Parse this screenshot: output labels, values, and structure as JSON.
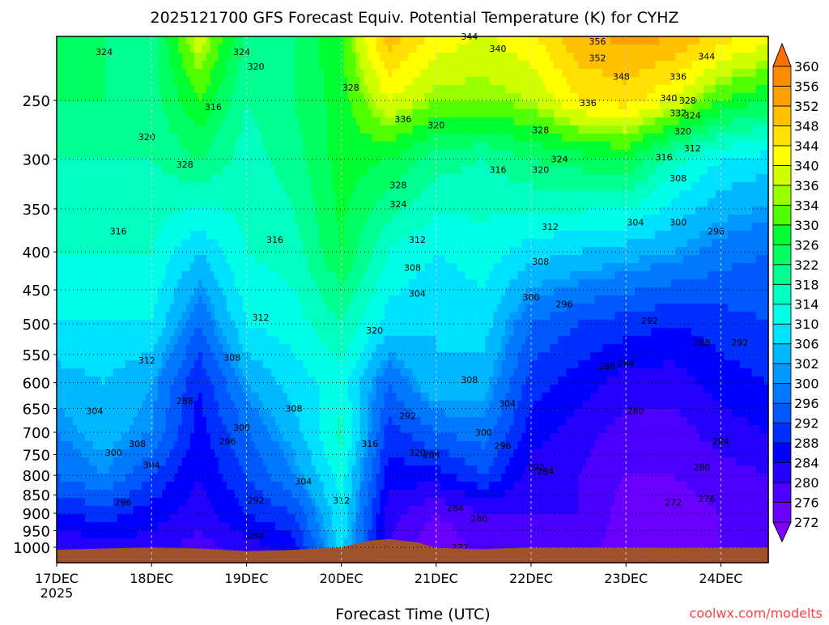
{
  "chart_data": {
    "type": "heatmap",
    "title": "2025121700 GFS Forecast Equiv. Potential Temperature (K) for CYHZ",
    "xlabel": "Forecast Time (UTC)",
    "ylabel": "",
    "credit": "coolwx.com/modelts",
    "x_ticks": [
      {
        "day": 0,
        "label": "17DEC",
        "sub": "2025"
      },
      {
        "day": 1,
        "label": "18DEC"
      },
      {
        "day": 2,
        "label": "19DEC"
      },
      {
        "day": 3,
        "label": "20DEC"
      },
      {
        "day": 4,
        "label": "21DEC"
      },
      {
        "day": 5,
        "label": "22DEC"
      },
      {
        "day": 6,
        "label": "23DEC"
      },
      {
        "day": 7,
        "label": "24DEC"
      }
    ],
    "xlim": [
      0,
      7.5
    ],
    "ylim_hpa": [
      1049,
      205
    ],
    "y_ticks": [
      250,
      300,
      350,
      400,
      450,
      500,
      550,
      600,
      650,
      700,
      750,
      800,
      850,
      900,
      950,
      1000
    ],
    "times_days": [
      0,
      0.5,
      1,
      1.5,
      2,
      2.5,
      3,
      3.5,
      4,
      4.5,
      5,
      5.5,
      6,
      6.5,
      7,
      7.5
    ],
    "levels_hpa": [
      200,
      250,
      300,
      400,
      500,
      600,
      700,
      800,
      900,
      1000
    ],
    "theta_e": [
      [
        324,
        322,
        320,
        340,
        322,
        322,
        330,
        352,
        344,
        340,
        344,
        352,
        354,
        354,
        348,
        344
      ],
      [
        322,
        322,
        320,
        330,
        318,
        322,
        328,
        340,
        334,
        334,
        336,
        344,
        346,
        340,
        330,
        326
      ],
      [
        318,
        318,
        318,
        322,
        316,
        320,
        328,
        326,
        320,
        318,
        322,
        324,
        326,
        316,
        310,
        308
      ],
      [
        314,
        314,
        314,
        306,
        314,
        316,
        326,
        314,
        310,
        312,
        308,
        306,
        304,
        302,
        298,
        296
      ],
      [
        310,
        310,
        310,
        296,
        310,
        312,
        318,
        308,
        306,
        308,
        296,
        292,
        290,
        288,
        290,
        292
      ],
      [
        304,
        306,
        302,
        288,
        302,
        308,
        312,
        296,
        306,
        304,
        290,
        286,
        282,
        282,
        286,
        288
      ],
      [
        300,
        304,
        300,
        286,
        296,
        304,
        316,
        290,
        296,
        298,
        286,
        282,
        278,
        278,
        282,
        284
      ],
      [
        296,
        300,
        292,
        284,
        292,
        300,
        312,
        286,
        286,
        292,
        282,
        280,
        276,
        276,
        278,
        280
      ],
      [
        288,
        290,
        286,
        282,
        288,
        292,
        310,
        282,
        276,
        280,
        280,
        280,
        274,
        274,
        276,
        278
      ],
      [
        280,
        282,
        282,
        278,
        282,
        286,
        308,
        280,
        272,
        278,
        278,
        278,
        274,
        274,
        276,
        276
      ]
    ],
    "surface_pressure": {
      "days": [
        0,
        0.5,
        1,
        1.5,
        2,
        2.5,
        3,
        3.3,
        3.5,
        3.8,
        4,
        4.5,
        5,
        5.5,
        6,
        6.5,
        7,
        7.5
      ],
      "hpa": [
        1008,
        1004,
        1000,
        1004,
        1012,
        1008,
        1000,
        980,
        975,
        985,
        1002,
        1006,
        1000,
        1000,
        1000,
        1001,
        1000,
        1000
      ]
    },
    "colorbar": {
      "levels": [
        272,
        276,
        280,
        284,
        288,
        292,
        296,
        300,
        302,
        306,
        310,
        314,
        318,
        322,
        326,
        330,
        334,
        336,
        340,
        344,
        348,
        352,
        356,
        360
      ],
      "colors": [
        "#8000ff",
        "#6a00ff",
        "#4a00ff",
        "#2400ff",
        "#0000ff",
        "#0030ff",
        "#0058ff",
        "#0078ff",
        "#0098ff",
        "#00b8ff",
        "#00e0ff",
        "#00ffe8",
        "#00ffc0",
        "#00ff90",
        "#00ff60",
        "#00ff30",
        "#50ff00",
        "#98ff00",
        "#d0ff00",
        "#ffff00",
        "#ffe000",
        "#ffc000",
        "#ffa000",
        "#ff8c00",
        "#ff7000"
      ]
    },
    "contour_labels": [
      {
        "day": 0.5,
        "hpa": 215,
        "text": "324"
      },
      {
        "day": 1.95,
        "hpa": 215,
        "text": "324"
      },
      {
        "day": 2.1,
        "hpa": 225,
        "text": "320"
      },
      {
        "day": 0.95,
        "hpa": 280,
        "text": "320"
      },
      {
        "day": 1.35,
        "hpa": 305,
        "text": "328"
      },
      {
        "day": 1.65,
        "hpa": 255,
        "text": "316"
      },
      {
        "day": 3.1,
        "hpa": 240,
        "text": "328"
      },
      {
        "day": 4.35,
        "hpa": 205,
        "text": "344"
      },
      {
        "day": 4.65,
        "hpa": 213,
        "text": "340"
      },
      {
        "day": 5.7,
        "hpa": 208,
        "text": "356"
      },
      {
        "day": 5.7,
        "hpa": 219,
        "text": "352"
      },
      {
        "day": 5.95,
        "hpa": 232,
        "text": "348"
      },
      {
        "day": 5.6,
        "hpa": 252,
        "text": "336"
      },
      {
        "day": 5.1,
        "hpa": 274,
        "text": "328"
      },
      {
        "day": 6.45,
        "hpa": 248,
        "text": "340"
      },
      {
        "day": 6.55,
        "hpa": 260,
        "text": "332"
      },
      {
        "day": 6.6,
        "hpa": 275,
        "text": "320"
      },
      {
        "day": 6.85,
        "hpa": 218,
        "text": "344"
      },
      {
        "day": 6.55,
        "hpa": 232,
        "text": "336"
      },
      {
        "day": 6.65,
        "hpa": 250,
        "text": "328"
      },
      {
        "day": 6.7,
        "hpa": 262,
        "text": "324"
      },
      {
        "day": 6.4,
        "hpa": 298,
        "text": "316"
      },
      {
        "day": 6.7,
        "hpa": 290,
        "text": "312"
      },
      {
        "day": 6.55,
        "hpa": 318,
        "text": "308"
      },
      {
        "day": 4.0,
        "hpa": 270,
        "text": "320"
      },
      {
        "day": 3.65,
        "hpa": 265,
        "text": "336"
      },
      {
        "day": 3.6,
        "hpa": 325,
        "text": "328"
      },
      {
        "day": 3.6,
        "hpa": 345,
        "text": "324"
      },
      {
        "day": 4.65,
        "hpa": 310,
        "text": "316"
      },
      {
        "day": 5.1,
        "hpa": 310,
        "text": "320"
      },
      {
        "day": 5.3,
        "hpa": 300,
        "text": "324"
      },
      {
        "day": 5.2,
        "hpa": 370,
        "text": "312"
      },
      {
        "day": 3.8,
        "hpa": 385,
        "text": "312"
      },
      {
        "day": 3.75,
        "hpa": 420,
        "text": "308"
      },
      {
        "day": 3.8,
        "hpa": 455,
        "text": "304"
      },
      {
        "day": 5.1,
        "hpa": 412,
        "text": "308"
      },
      {
        "day": 5.0,
        "hpa": 460,
        "text": "300"
      },
      {
        "day": 5.35,
        "hpa": 470,
        "text": "296"
      },
      {
        "day": 6.25,
        "hpa": 495,
        "text": "292"
      },
      {
        "day": 6.1,
        "hpa": 365,
        "text": "304"
      },
      {
        "day": 6.55,
        "hpa": 365,
        "text": "300"
      },
      {
        "day": 6.95,
        "hpa": 375,
        "text": "296"
      },
      {
        "day": 0.65,
        "hpa": 375,
        "text": "316"
      },
      {
        "day": 2.3,
        "hpa": 385,
        "text": "316"
      },
      {
        "day": 2.15,
        "hpa": 490,
        "text": "312"
      },
      {
        "day": 3.35,
        "hpa": 510,
        "text": "320"
      },
      {
        "day": 0.95,
        "hpa": 560,
        "text": "312"
      },
      {
        "day": 1.85,
        "hpa": 555,
        "text": "308"
      },
      {
        "day": 4.35,
        "hpa": 595,
        "text": "308"
      },
      {
        "day": 4.75,
        "hpa": 640,
        "text": "304"
      },
      {
        "day": 1.35,
        "hpa": 635,
        "text": "288"
      },
      {
        "day": 0.4,
        "hpa": 655,
        "text": "304"
      },
      {
        "day": 2.5,
        "hpa": 650,
        "text": "308"
      },
      {
        "day": 1.95,
        "hpa": 690,
        "text": "300"
      },
      {
        "day": 1.8,
        "hpa": 720,
        "text": "296"
      },
      {
        "day": 0.85,
        "hpa": 725,
        "text": "308"
      },
      {
        "day": 0.6,
        "hpa": 745,
        "text": "300"
      },
      {
        "day": 1.0,
        "hpa": 775,
        "text": "304"
      },
      {
        "day": 3.7,
        "hpa": 665,
        "text": "292"
      },
      {
        "day": 4.5,
        "hpa": 700,
        "text": "300"
      },
      {
        "day": 4.7,
        "hpa": 730,
        "text": "296"
      },
      {
        "day": 5.05,
        "hpa": 780,
        "text": "292"
      },
      {
        "day": 5.15,
        "hpa": 790,
        "text": "284"
      },
      {
        "day": 3.95,
        "hpa": 750,
        "text": "288"
      },
      {
        "day": 3.8,
        "hpa": 745,
        "text": "320"
      },
      {
        "day": 3.3,
        "hpa": 725,
        "text": "316"
      },
      {
        "day": 2.6,
        "hpa": 815,
        "text": "304"
      },
      {
        "day": 2.1,
        "hpa": 865,
        "text": "292"
      },
      {
        "day": 3.0,
        "hpa": 865,
        "text": "312"
      },
      {
        "day": 0.7,
        "hpa": 870,
        "text": "296"
      },
      {
        "day": 2.1,
        "hpa": 965,
        "text": "284"
      },
      {
        "day": 4.2,
        "hpa": 885,
        "text": "284"
      },
      {
        "day": 4.45,
        "hpa": 915,
        "text": "280"
      },
      {
        "day": 4.25,
        "hpa": 1000,
        "text": "272"
      },
      {
        "day": 5.8,
        "hpa": 570,
        "text": "286"
      },
      {
        "day": 6.0,
        "hpa": 565,
        "text": "284"
      },
      {
        "day": 6.1,
        "hpa": 655,
        "text": "280"
      },
      {
        "day": 6.8,
        "hpa": 530,
        "text": "288"
      },
      {
        "day": 7.2,
        "hpa": 530,
        "text": "292"
      },
      {
        "day": 7.0,
        "hpa": 720,
        "text": "284"
      },
      {
        "day": 6.8,
        "hpa": 780,
        "text": "280"
      },
      {
        "day": 6.5,
        "hpa": 870,
        "text": "272"
      },
      {
        "day": 6.85,
        "hpa": 860,
        "text": "276"
      }
    ]
  }
}
